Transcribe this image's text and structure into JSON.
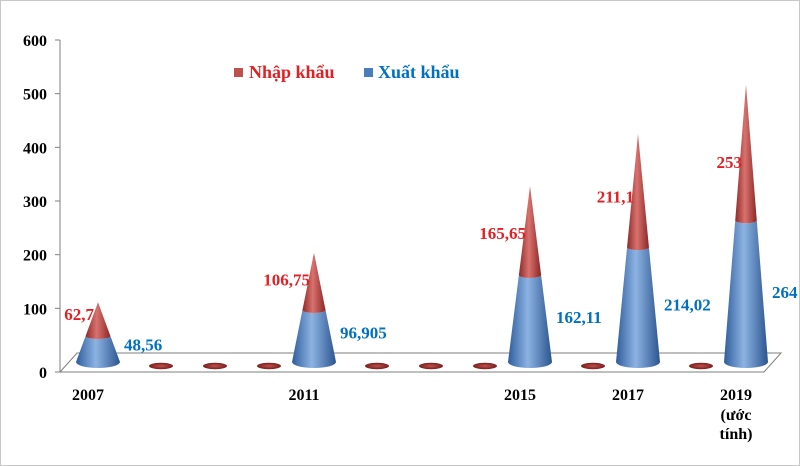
{
  "chart_data": {
    "type": "bar",
    "style": "stacked-cone",
    "categories": [
      "2007",
      "",
      "",
      "",
      "2011",
      "",
      "",
      "",
      "2015",
      "",
      "2017",
      "",
      "2019"
    ],
    "category_sublabels": [
      "",
      "",
      "",
      "",
      "",
      "",
      "",
      "",
      "",
      "",
      "",
      "",
      "(ước tính)"
    ],
    "series": [
      {
        "name": "Xuất khẩu",
        "color": "#4a7ebb",
        "values": [
          48.56,
          0,
          0,
          0,
          96.905,
          0,
          0,
          0,
          162.11,
          0,
          214.02,
          0,
          264
        ],
        "labels": [
          "48,56",
          "",
          "",
          "",
          "96,905",
          "",
          "",
          "",
          "162,11",
          "",
          "214,02",
          "",
          "264"
        ]
      },
      {
        "name": "Nhập khẩu",
        "color": "#c0504d",
        "values": [
          62.7,
          0,
          0,
          0,
          106.75,
          0,
          0,
          0,
          165.65,
          0,
          211.1,
          0,
          253
        ],
        "labels": [
          "62,7",
          "",
          "",
          "",
          "106,75",
          "",
          "",
          "",
          "165,65",
          "",
          "211,1",
          "",
          "253"
        ]
      }
    ],
    "ylim": [
      0,
      600
    ],
    "yticks": [
      0,
      100,
      200,
      300,
      400,
      500,
      600
    ],
    "legend_position": "top-left",
    "grid": false,
    "label_colors": {
      "import": "#e41f23",
      "export": "#0070c0"
    }
  }
}
